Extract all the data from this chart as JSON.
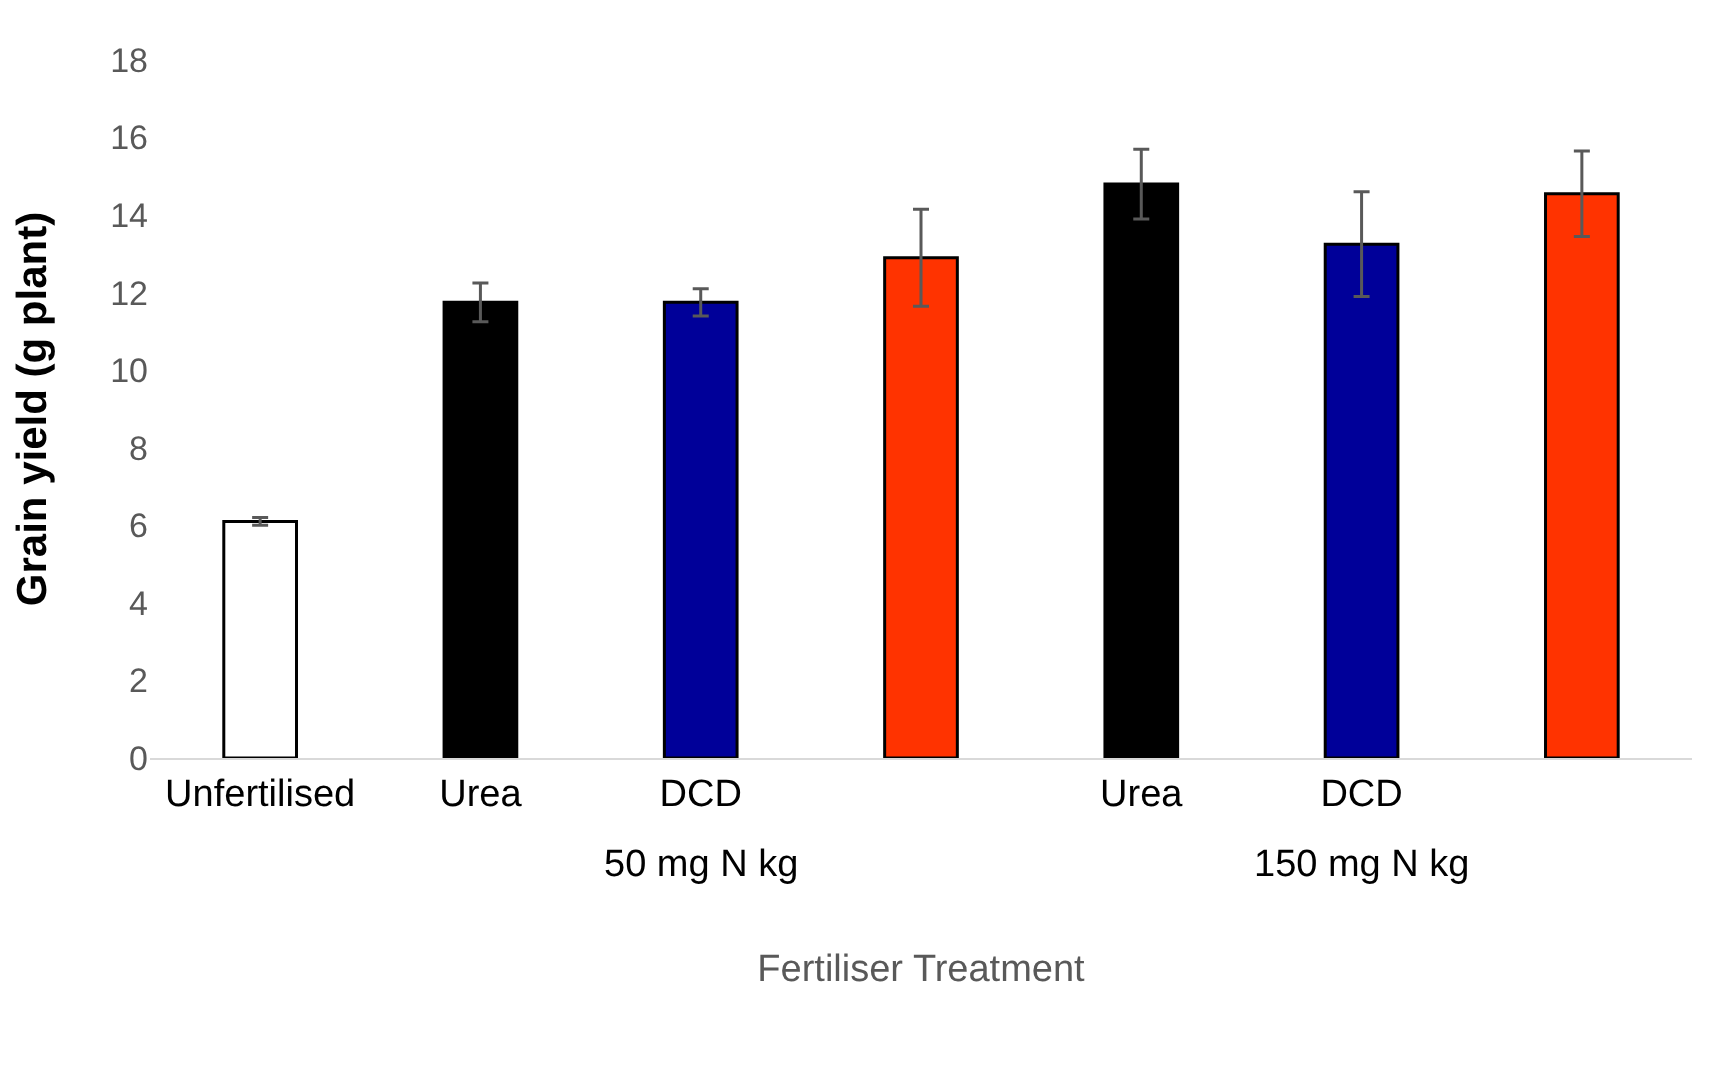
{
  "chart_data": {
    "type": "bar",
    "xlabel": "Fertiliser Treatment",
    "ylabel": "Grain yield (g plant)",
    "categories": [
      "Unfertilised",
      "Urea",
      "DCD",
      null,
      "Urea",
      "DCD",
      null
    ],
    "values": [
      6.1,
      11.75,
      11.75,
      12.9,
      14.8,
      13.25,
      14.55
    ],
    "colors": [
      "#ffffff",
      "#000000",
      "#000099",
      "#ff3300",
      "#000000",
      "#000099",
      "#ff3300"
    ],
    "errors": [
      0.1,
      0.5,
      0.35,
      1.25,
      0.9,
      1.35,
      1.1
    ],
    "ylim": [
      0,
      18
    ],
    "yticks": [
      0,
      2,
      4,
      6,
      8,
      10,
      12,
      14,
      16,
      18
    ],
    "grid": false,
    "annotations": [
      "50 mg N kg",
      "150 mg N kg"
    ]
  }
}
